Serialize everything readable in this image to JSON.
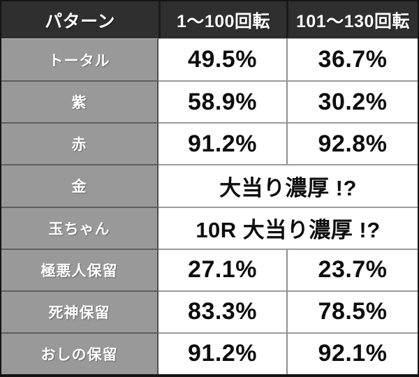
{
  "colors": {
    "header_bg": "#2f2f2f",
    "header_text": "#ffffff",
    "label_bg": "#999999",
    "label_text": "#ffffff",
    "value_bg": "#ffffff",
    "value_text": "#0d0d0d",
    "outer_border": "#141414",
    "divider_dark": "#4f4f4f",
    "divider_light": "#909090"
  },
  "table": {
    "header": [
      "パターン",
      "1〜100回転",
      "101〜130回転"
    ],
    "rows": [
      {
        "label": "トータル",
        "values": [
          "49.5%",
          "36.7%"
        ]
      },
      {
        "label": "紫",
        "values": [
          "58.9%",
          "30.2%"
        ]
      },
      {
        "label": "赤",
        "values": [
          "91.2%",
          "92.8%"
        ]
      },
      {
        "label": "金",
        "values": [
          "大当り濃厚 !?"
        ],
        "span": 2
      },
      {
        "label": "玉ちゃん",
        "values": [
          "10R 大当り濃厚 !?"
        ],
        "span": 2
      },
      {
        "label": "極悪人保留",
        "values": [
          "27.1%",
          "23.7%"
        ]
      },
      {
        "label": "死神保留",
        "values": [
          "83.3%",
          "78.5%"
        ]
      },
      {
        "label": "おしの保留",
        "values": [
          "91.2%",
          "92.1%"
        ]
      }
    ]
  },
  "chart_data": {
    "type": "table",
    "title": "",
    "columns": [
      "パターン",
      "1〜100回転",
      "101〜130回転"
    ],
    "rows": [
      [
        "トータル",
        "49.5%",
        "36.7%"
      ],
      [
        "紫",
        "58.9%",
        "30.2%"
      ],
      [
        "赤",
        "91.2%",
        "92.8%"
      ],
      [
        "金",
        "大当り濃厚 !?",
        "大当り濃厚 !?"
      ],
      [
        "玉ちゃん",
        "10R 大当り濃厚 !?",
        "10R 大当り濃厚 !?"
      ],
      [
        "極悪人保留",
        "27.1%",
        "23.7%"
      ],
      [
        "死神保留",
        "83.3%",
        "78.5%"
      ],
      [
        "おしの保留",
        "91.2%",
        "92.1%"
      ]
    ],
    "notes": "Rows 金 and 玉ちゃん display a single value spanning both spin-range columns."
  }
}
